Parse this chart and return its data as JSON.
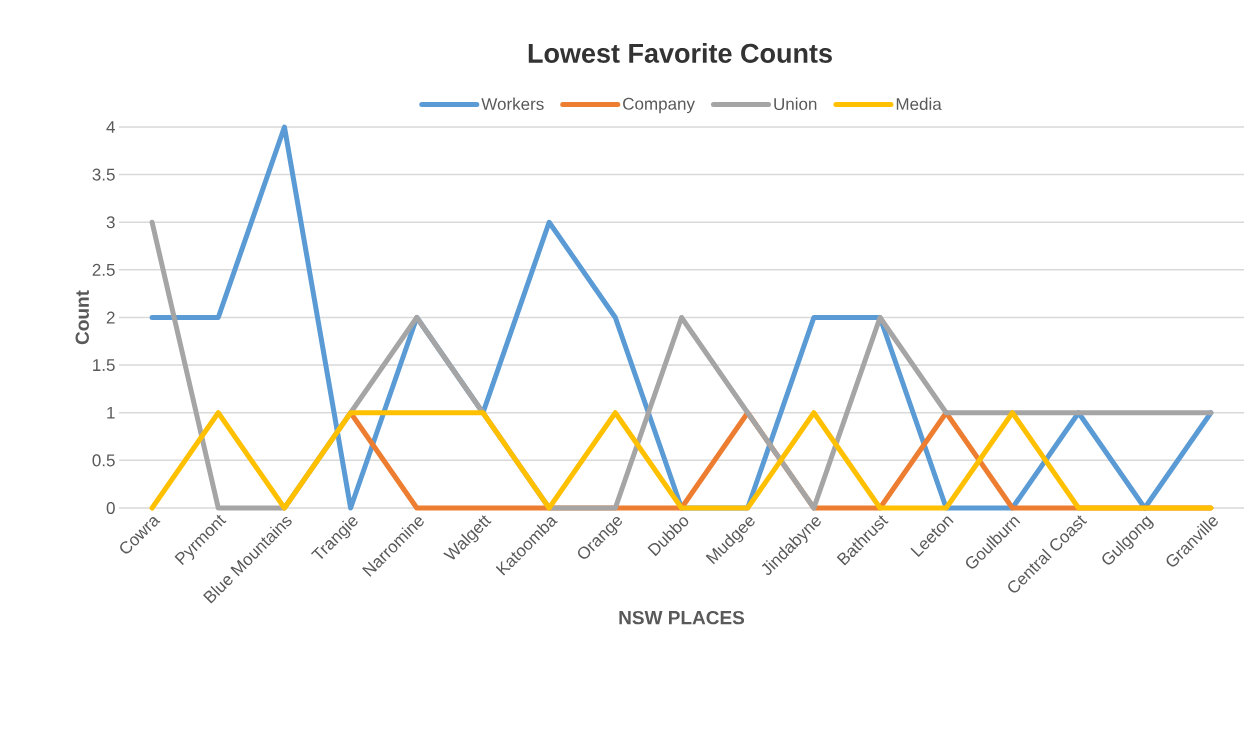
{
  "chart_data": {
    "type": "line",
    "title": "Lowest Favorite Counts",
    "xlabel": "NSW PLACES",
    "ylabel": "Count",
    "categories": [
      "Cowra",
      "Pyrmont",
      "Blue Mountains",
      "Trangie",
      "Narromine",
      "Walgett",
      "Katoomba",
      "Orange",
      "Dubbo",
      "Mudgee",
      "Jindabyne",
      "Bathrust",
      "Leeton",
      "Goulburn",
      "Central Coast",
      "Gulgong",
      "Granville"
    ],
    "series": [
      {
        "name": "Workers",
        "color": "#5b9bd5",
        "values": [
          2,
          2,
          4,
          0,
          2,
          1,
          3,
          2,
          0,
          0,
          2,
          2,
          0,
          0,
          1,
          0,
          1
        ]
      },
      {
        "name": "Company",
        "color": "#ed7d31",
        "values": [
          null,
          null,
          null,
          1,
          0,
          0,
          0,
          0,
          0,
          1,
          0,
          0,
          1,
          0,
          0,
          0,
          0
        ]
      },
      {
        "name": "Union",
        "color": "#a5a5a5",
        "values": [
          3,
          0,
          0,
          1,
          2,
          1,
          0,
          0,
          2,
          1,
          0,
          2,
          1,
          1,
          1,
          1,
          1
        ]
      },
      {
        "name": "Media",
        "color": "#ffc000",
        "values": [
          0,
          1,
          0,
          1,
          1,
          1,
          0,
          1,
          0,
          0,
          1,
          0,
          0,
          1,
          0,
          0,
          0
        ]
      }
    ],
    "ylim": [
      0,
      4
    ],
    "yticks": [
      0,
      0.5,
      1,
      1.5,
      2,
      2.5,
      3,
      3.5,
      4
    ],
    "grid": "y",
    "legend": "top",
    "marker": "none",
    "line_style": "solid"
  }
}
